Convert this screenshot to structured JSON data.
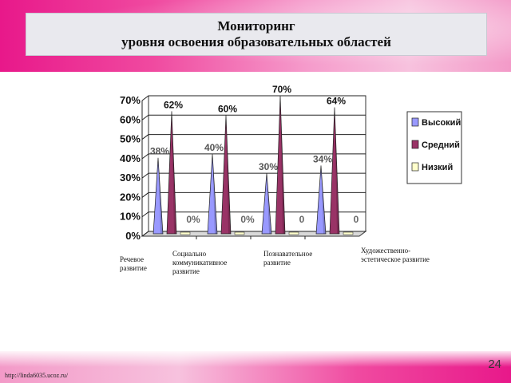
{
  "slide": {
    "title_line1": "Мониторинг",
    "title_line2": "уровня освоения образовательных областей",
    "footer_url": "http://linda6035.ucoz.ru/",
    "page_number": "24"
  },
  "colors": {
    "high": "#9999ff",
    "medium": "#993366",
    "low": "#ffffcc"
  },
  "chart_data": {
    "type": "bar",
    "title": "",
    "xlabel": "",
    "ylabel": "",
    "ylim": [
      0,
      70
    ],
    "yticks": [
      "0%",
      "10%",
      "20%",
      "30%",
      "40%",
      "50%",
      "60%",
      "70%"
    ],
    "grid": true,
    "legend_position": "right",
    "categories": [
      "Речевое развитие",
      "Социально коммуникативное развитие",
      "Познавательное развитие",
      "Художественно-эстетическое развитие"
    ],
    "series": [
      {
        "name": "Высокий",
        "values": [
          38,
          40,
          30,
          34
        ],
        "labels": [
          "38%",
          "40%",
          "30%",
          "34%"
        ]
      },
      {
        "name": "Средний",
        "values": [
          62,
          60,
          70,
          64
        ],
        "labels": [
          "62%",
          "60%",
          "70%",
          "64%"
        ]
      },
      {
        "name": "Низкий",
        "values": [
          0,
          0,
          0,
          0
        ],
        "labels": [
          "0%",
          "0%",
          "0",
          "0"
        ]
      }
    ]
  }
}
